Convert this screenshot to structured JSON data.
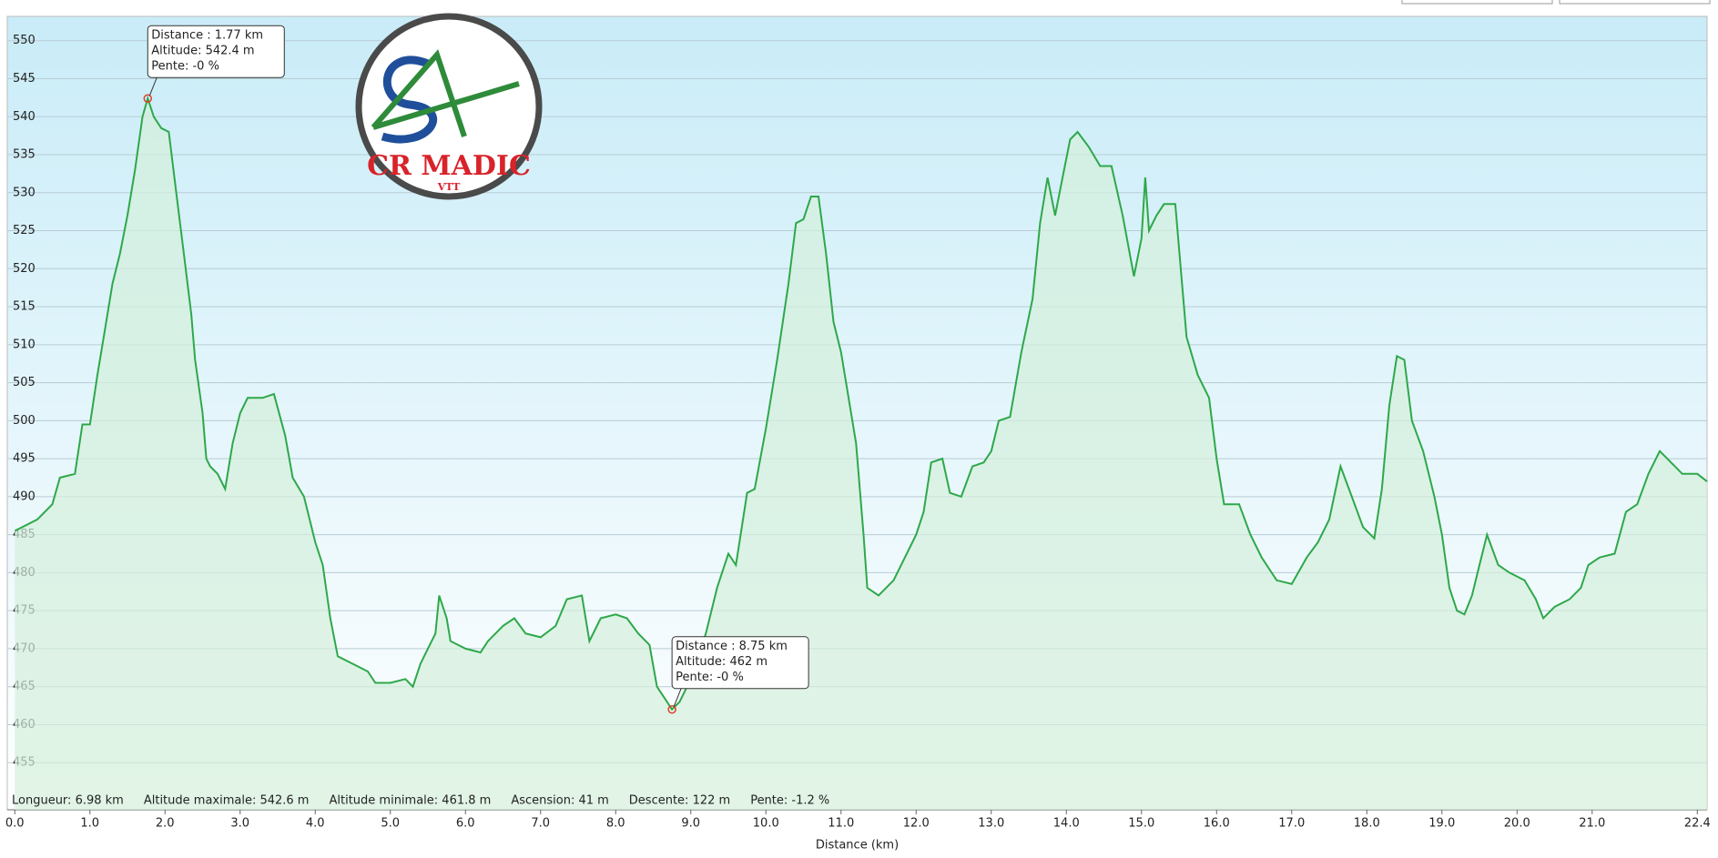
{
  "chart_data": {
    "type": "area",
    "x_label": "Distance   (km)",
    "color": "#2ea84a",
    "fill": "#d4f0dc",
    "grid": true,
    "xlim": [
      -0.1,
      22.53
    ],
    "ylim": [
      448.8,
      553.2
    ],
    "xticks": [
      {
        "value": 0,
        "label": "0.0"
      },
      {
        "value": 1,
        "label": "1.0"
      },
      {
        "value": 2,
        "label": "2.0"
      },
      {
        "value": 3,
        "label": "3.0"
      },
      {
        "value": 4,
        "label": "4.0"
      },
      {
        "value": 5,
        "label": "5.0"
      },
      {
        "value": 6,
        "label": "6.0"
      },
      {
        "value": 7,
        "label": "7.0"
      },
      {
        "value": 8,
        "label": "8.0"
      },
      {
        "value": 9,
        "label": "9.0"
      },
      {
        "value": 10,
        "label": "10.0"
      },
      {
        "value": 11,
        "label": "11.0"
      },
      {
        "value": 12,
        "label": "12.0"
      },
      {
        "value": 13,
        "label": "13.0"
      },
      {
        "value": 14,
        "label": "14.0"
      },
      {
        "value": 15,
        "label": "15.0"
      },
      {
        "value": 16,
        "label": "16.0"
      },
      {
        "value": 17,
        "label": "17.0"
      },
      {
        "value": 18,
        "label": "18.0"
      },
      {
        "value": 19,
        "label": "19.0"
      },
      {
        "value": 20,
        "label": "20.0"
      },
      {
        "value": 21,
        "label": "21.0"
      },
      22.4
    ],
    "yticks": [
      455,
      460,
      465,
      470,
      475,
      480,
      485,
      490,
      495,
      500,
      505,
      510,
      515,
      520,
      525,
      530,
      535,
      540,
      545,
      550
    ],
    "x": [
      0.0,
      0.3,
      0.5,
      0.6,
      0.8,
      0.9,
      1.0,
      1.1,
      1.2,
      1.3,
      1.4,
      1.5,
      1.6,
      1.7,
      1.77,
      1.85,
      1.95,
      2.05,
      2.15,
      2.25,
      2.35,
      2.4,
      2.5,
      2.55,
      2.6,
      2.7,
      2.8,
      2.9,
      3.0,
      3.1,
      3.3,
      3.45,
      3.6,
      3.7,
      3.85,
      4.0,
      4.1,
      4.2,
      4.3,
      4.5,
      4.7,
      4.8,
      5.0,
      5.2,
      5.3,
      5.4,
      5.5,
      5.6,
      5.65,
      5.75,
      5.8,
      6.0,
      6.2,
      6.3,
      6.5,
      6.65,
      6.8,
      7.0,
      7.2,
      7.35,
      7.55,
      7.65,
      7.8,
      8.0,
      8.15,
      8.3,
      8.45,
      8.55,
      8.65,
      8.75,
      8.85,
      9.0,
      9.2,
      9.35,
      9.5,
      9.6,
      9.75,
      9.85,
      10.0,
      10.15,
      10.3,
      10.4,
      10.5,
      10.6,
      10.7,
      10.8,
      10.9,
      11.0,
      11.2,
      11.3,
      11.35,
      11.5,
      11.7,
      11.85,
      12.0,
      12.1,
      12.2,
      12.35,
      12.45,
      12.6,
      12.75,
      12.9,
      13.0,
      13.1,
      13.25,
      13.4,
      13.55,
      13.65,
      13.75,
      13.85,
      13.95,
      14.05,
      14.15,
      14.3,
      14.45,
      14.6,
      14.75,
      14.9,
      15.0,
      15.05,
      15.1,
      15.2,
      15.3,
      15.45,
      15.6,
      15.75,
      15.9,
      16.0,
      16.1,
      16.3,
      16.45,
      16.6,
      16.8,
      17.0,
      17.2,
      17.35,
      17.5,
      17.65,
      17.8,
      17.95,
      18.1,
      18.2,
      18.3,
      18.4,
      18.5,
      18.6,
      18.75,
      18.9,
      19.0,
      19.1,
      19.2,
      19.3,
      19.4,
      19.5,
      19.6,
      19.75,
      19.9,
      20.1,
      20.25,
      20.35,
      20.5,
      20.7,
      20.85,
      20.95,
      21.1,
      21.3,
      21.45,
      21.6,
      21.75,
      21.9,
      22.0,
      22.2,
      22.4,
      22.53
    ],
    "values": [
      485.5,
      487,
      489,
      492.5,
      493,
      499.5,
      499.5,
      506,
      512,
      518,
      522,
      527,
      533,
      540,
      542.4,
      540,
      538.5,
      538,
      530,
      522,
      514,
      508,
      501,
      495,
      494,
      493,
      491,
      497,
      501,
      503,
      503,
      503.5,
      498,
      492.5,
      490,
      484,
      481,
      474,
      469,
      468,
      467,
      465.5,
      465.5,
      466,
      465,
      468,
      470,
      472,
      477,
      474,
      471,
      470,
      469.5,
      471,
      473,
      474,
      472,
      471.5,
      473,
      476.5,
      477,
      471,
      474,
      474.5,
      474,
      472,
      470.5,
      465,
      463.5,
      462,
      463,
      466,
      472,
      478,
      482.5,
      481,
      490.5,
      491,
      499,
      508,
      518,
      526,
      526.5,
      529.5,
      529.5,
      522,
      513,
      509,
      497,
      485,
      478,
      477,
      479,
      482,
      485,
      488,
      494.5,
      495,
      490.5,
      490,
      494,
      494.5,
      496,
      500,
      500.5,
      509,
      516,
      526,
      532,
      527,
      532,
      537,
      538,
      536,
      533.5,
      533.5,
      527,
      519,
      524,
      532,
      525,
      527,
      528.5,
      528.5,
      511,
      506,
      503,
      495,
      489,
      489,
      485,
      482,
      479,
      478.5,
      482,
      484,
      487,
      494,
      490,
      486,
      484.5,
      491,
      502,
      508.5,
      508,
      500,
      496,
      490,
      485,
      478,
      475,
      474.5,
      477,
      481,
      485,
      481,
      480,
      479,
      476.5,
      474,
      475.5,
      476.5,
      478,
      481,
      482,
      482.5,
      488,
      489,
      493,
      496,
      495,
      493,
      493,
      492
    ],
    "annotations": [
      {
        "x": 1.77,
        "y": 542.4,
        "lines": [
          "Distance  : 1.77 km",
          "Altitude: 542.4 m",
          "Pente: -0 %"
        ]
      },
      {
        "x": 8.75,
        "y": 462,
        "lines": [
          "Distance  : 8.75 km",
          "Altitude: 462 m",
          "Pente: -0 %"
        ]
      }
    ],
    "stats": [
      "Longueur: 6.98 km",
      "Altitude maximale: 542.6 m",
      "Altitude minimale: 461.8 m",
      "Ascension: 41 m",
      "Descente: 122 m",
      "Pente: -1.2 %"
    ],
    "logo": {
      "title": "CR MADIC",
      "subtitle": "VTT"
    }
  }
}
